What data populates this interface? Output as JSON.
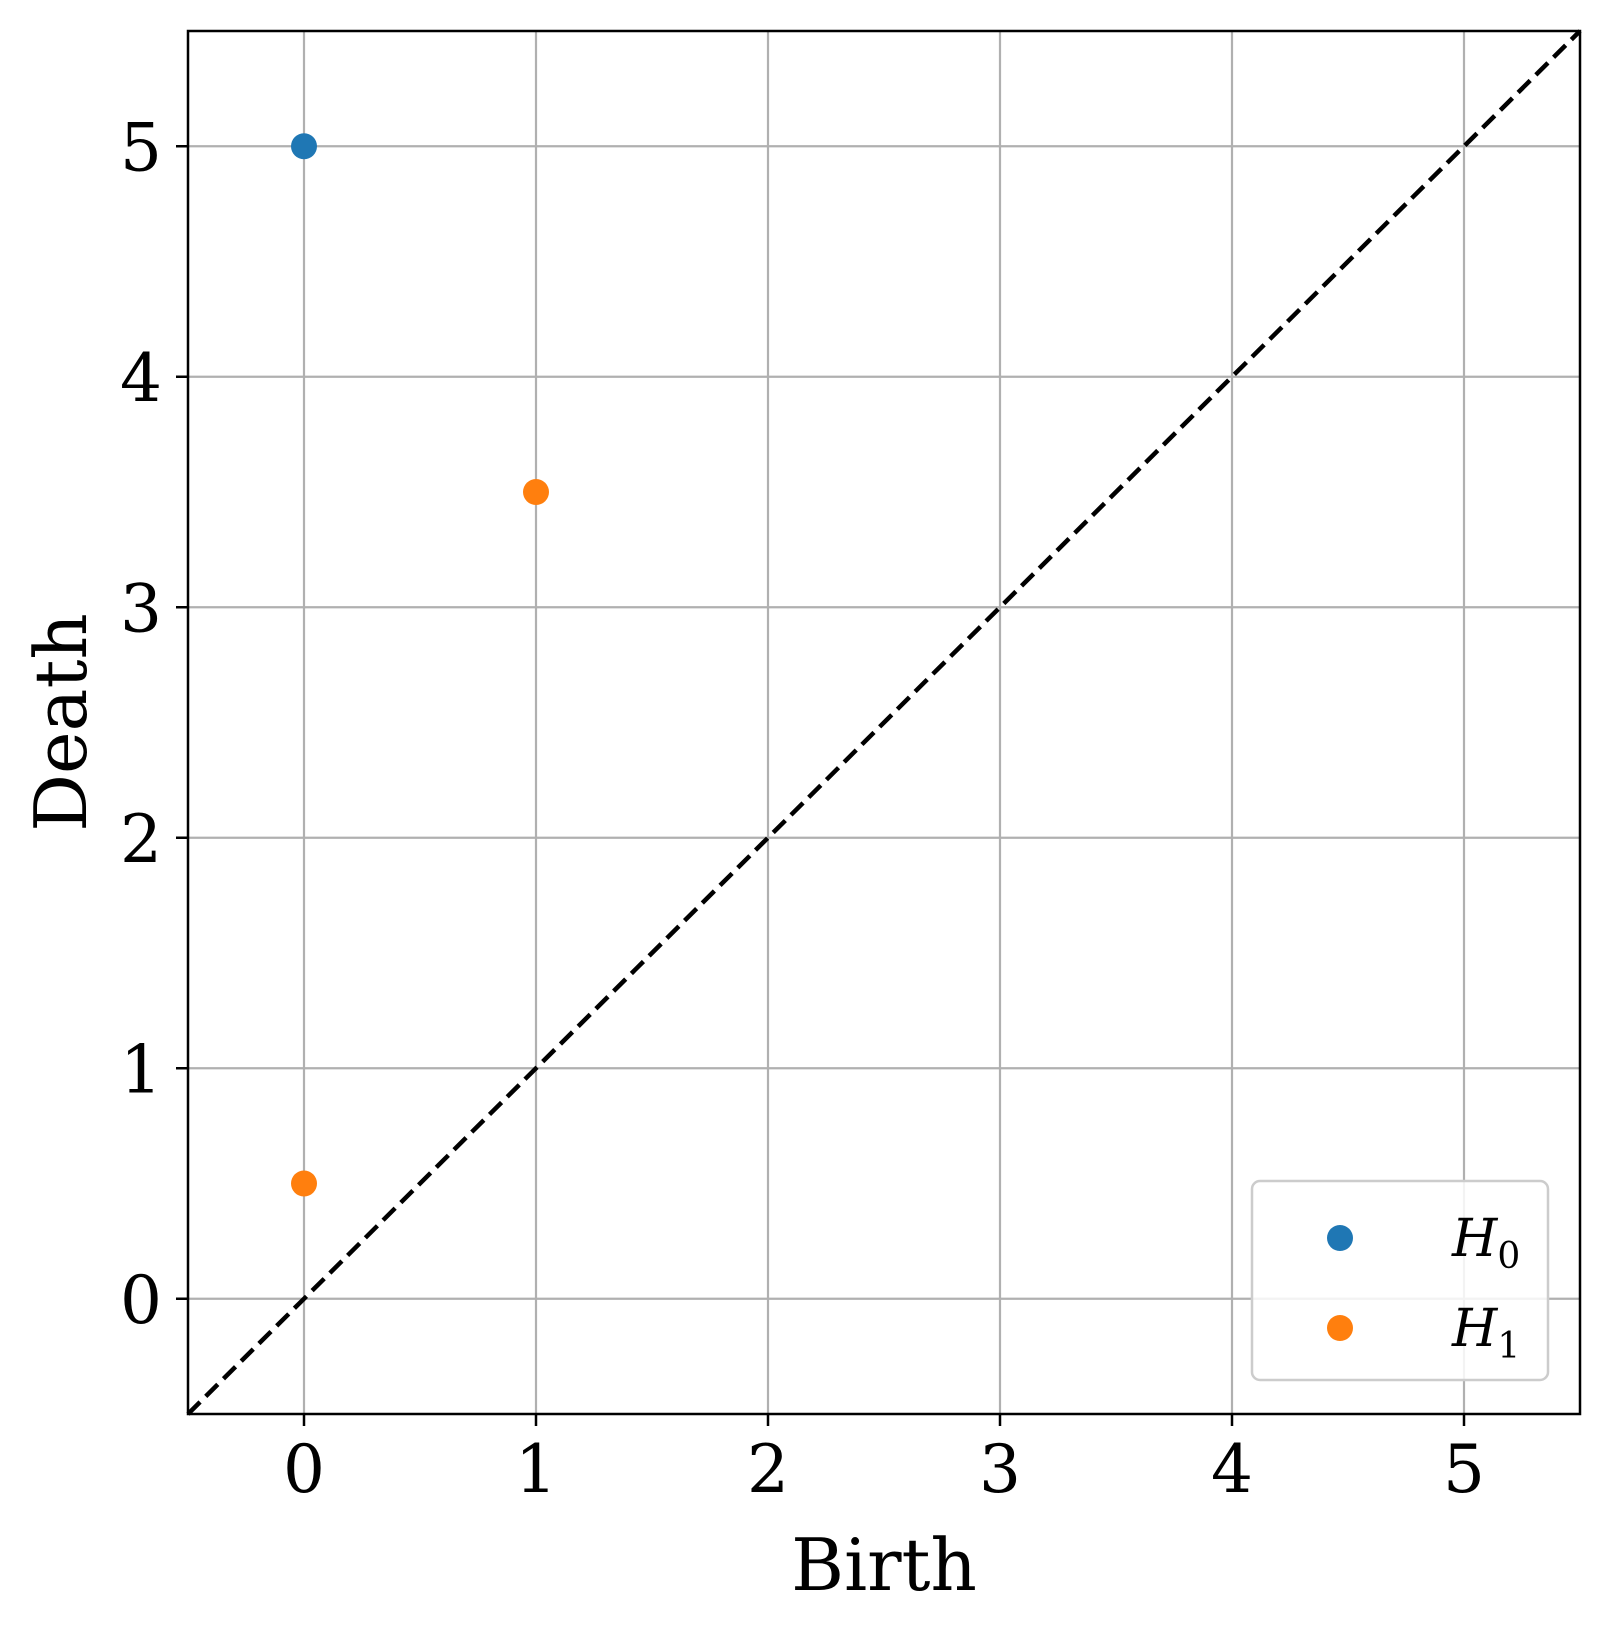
{
  "chart_data": {
    "type": "scatter",
    "title": "",
    "xlabel": "Birth",
    "ylabel": "Death",
    "xlim": [
      -0.5,
      5.5
    ],
    "ylim": [
      -0.5,
      5.5
    ],
    "xticks": [
      0,
      1,
      2,
      3,
      4,
      5
    ],
    "yticks": [
      0,
      1,
      2,
      3,
      4,
      5
    ],
    "xtick_labels": [
      "0",
      "1",
      "2",
      "3",
      "4",
      "5"
    ],
    "ytick_labels": [
      "0",
      "1",
      "2",
      "3",
      "4",
      "5"
    ],
    "grid": true,
    "legend_position": "bottom-right",
    "diagonal": {
      "from": [
        -0.5,
        -0.5
      ],
      "to": [
        5.5,
        5.5
      ],
      "style": "dashed",
      "color": "#000000"
    },
    "series": [
      {
        "name": "H",
        "subscript": "0",
        "color": "#1f77b4",
        "points": [
          {
            "x": 0,
            "y": 5
          }
        ]
      },
      {
        "name": "H",
        "subscript": "1",
        "color": "#ff7f0e",
        "points": [
          {
            "x": 1,
            "y": 3.5
          },
          {
            "x": 0,
            "y": 0.5
          }
        ]
      }
    ]
  }
}
